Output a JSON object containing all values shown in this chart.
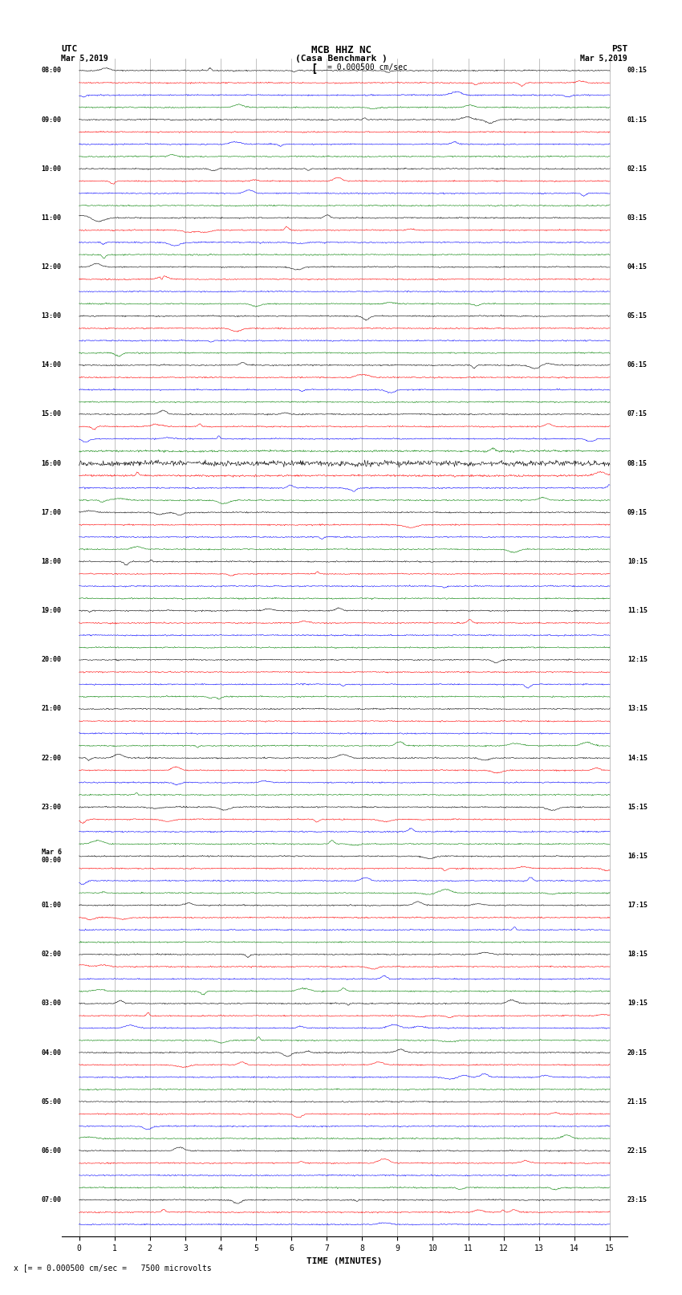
{
  "title_line1": "MCB HHZ NC",
  "title_line2": "(Casa Benchmark )",
  "scale_label": "= 0.000500 cm/sec",
  "left_header": "UTC",
  "left_date": "Mar 5,2019",
  "right_header": "PST",
  "right_date": "Mar 5,2019",
  "xlabel": "TIME (MINUTES)",
  "bottom_label": "= 0.000500 cm/sec =   7500 microvolts",
  "utc_times": [
    "08:00",
    "",
    "",
    "",
    "09:00",
    "",
    "",
    "",
    "10:00",
    "",
    "",
    "",
    "11:00",
    "",
    "",
    "",
    "12:00",
    "",
    "",
    "",
    "13:00",
    "",
    "",
    "",
    "14:00",
    "",
    "",
    "",
    "15:00",
    "",
    "",
    "",
    "16:00",
    "",
    "",
    "",
    "17:00",
    "",
    "",
    "",
    "18:00",
    "",
    "",
    "",
    "19:00",
    "",
    "",
    "",
    "20:00",
    "",
    "",
    "",
    "21:00",
    "",
    "",
    "",
    "22:00",
    "",
    "",
    "",
    "23:00",
    "",
    "",
    "",
    "Mar 6\n00:00",
    "",
    "",
    "",
    "01:00",
    "",
    "",
    "",
    "02:00",
    "",
    "",
    "",
    "03:00",
    "",
    "",
    "",
    "04:00",
    "",
    "",
    "",
    "05:00",
    "",
    "",
    "",
    "06:00",
    "",
    "",
    "",
    "07:00",
    "",
    ""
  ],
  "pst_times": [
    "00:15",
    "",
    "",
    "",
    "01:15",
    "",
    "",
    "",
    "02:15",
    "",
    "",
    "",
    "03:15",
    "",
    "",
    "",
    "04:15",
    "",
    "",
    "",
    "05:15",
    "",
    "",
    "",
    "06:15",
    "",
    "",
    "",
    "07:15",
    "",
    "",
    "",
    "08:15",
    "",
    "",
    "",
    "09:15",
    "",
    "",
    "",
    "10:15",
    "",
    "",
    "",
    "11:15",
    "",
    "",
    "",
    "12:15",
    "",
    "",
    "",
    "13:15",
    "",
    "",
    "",
    "14:15",
    "",
    "",
    "",
    "15:15",
    "",
    "",
    "",
    "16:15",
    "",
    "",
    "",
    "17:15",
    "",
    "",
    "",
    "18:15",
    "",
    "",
    "",
    "19:15",
    "",
    "",
    "",
    "20:15",
    "",
    "",
    "",
    "21:15",
    "",
    "",
    "",
    "22:15",
    "",
    "",
    "",
    "23:15",
    "",
    ""
  ],
  "trace_colors": [
    "black",
    "red",
    "blue",
    "green"
  ],
  "n_rows": 95,
  "n_points": 900,
  "xmin": 0,
  "xmax": 15,
  "background_color": "white",
  "grid_color": "#aaaaaa",
  "fig_width": 8.5,
  "fig_height": 16.13,
  "dpi": 100,
  "noise_amplitude": 0.08,
  "event_row": 32,
  "event_amplitude": 0.35
}
